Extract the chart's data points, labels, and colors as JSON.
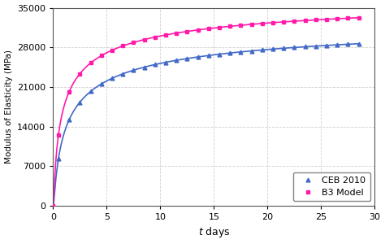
{
  "title": "",
  "xlabel_italic": "t",
  "xlabel_normal": " days",
  "ylabel": "Modulus of Elasticity (MPa)",
  "xlim": [
    0,
    30
  ],
  "ylim": [
    0,
    35000
  ],
  "yticks": [
    0,
    7000,
    14000,
    21000,
    28000,
    35000
  ],
  "xticks": [
    0,
    5,
    10,
    15,
    20,
    25,
    30
  ],
  "ceb_color": "#4169c8",
  "b3_color": "#ff1aaa",
  "ceb_marker": "^",
  "b3_marker": "s",
  "legend_loc": "lower right",
  "grid_color": "#d0d0d0",
  "background_color": "#ffffff",
  "E28_CEB": 28600,
  "E28_B3": 33200,
  "s_CEB": 0.38,
  "s_B3": 0.3,
  "t_end": 28.5,
  "marker_interval": 1.0,
  "marker_start": 0.5
}
